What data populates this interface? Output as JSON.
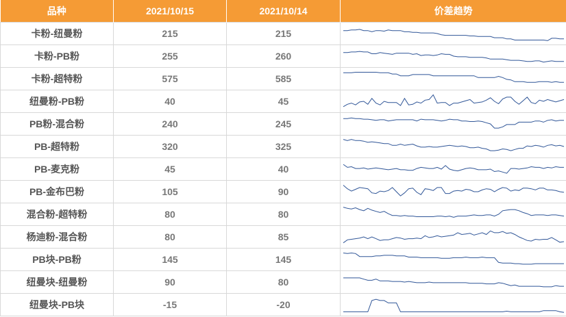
{
  "header": {
    "col_variety": "品种",
    "col_date1": "2021/10/15",
    "col_date2": "2021/10/14",
    "col_trend": "价差趋势"
  },
  "colors": {
    "header_bg": "#f59b35",
    "line": "#2f5597",
    "border": "#d8d8d8"
  },
  "chart_data": {
    "type": "table",
    "columns": [
      "品种",
      "2021/10/15",
      "2021/10/14",
      "价差趋势"
    ],
    "rows": [
      {
        "name": "卡粉-纽曼粉",
        "v1": "215",
        "v2": "215",
        "trend": [
          20,
          20,
          21,
          21,
          22,
          20,
          20,
          18,
          20,
          20,
          19,
          21,
          20,
          20,
          20,
          18,
          18,
          17,
          17,
          16,
          16,
          16,
          16,
          15,
          13,
          12,
          12,
          12,
          12,
          12,
          12,
          11,
          11,
          10,
          10,
          10,
          10,
          8,
          8,
          8,
          6,
          6,
          4,
          4,
          4,
          4,
          4,
          4,
          4,
          4,
          3,
          7,
          7,
          6,
          6
        ]
      },
      {
        "name": "卡粉-PB粉",
        "v1": "255",
        "v2": "260",
        "trend": [
          21,
          21,
          22,
          22,
          23,
          22,
          22,
          19,
          19,
          21,
          20,
          19,
          18,
          20,
          20,
          20,
          20,
          18,
          19,
          16,
          17,
          17,
          16,
          17,
          19,
          18,
          18,
          15,
          14,
          14,
          14,
          13,
          13,
          13,
          13,
          12,
          10,
          10,
          10,
          10,
          9,
          8,
          8,
          8,
          7,
          6,
          6,
          7,
          7,
          5,
          6,
          7,
          6,
          6,
          6
        ]
      },
      {
        "name": "卡粉-超特粉",
        "v1": "575",
        "v2": "585",
        "trend": [
          25,
          25,
          25,
          26,
          26,
          26,
          26,
          26,
          26,
          25,
          25,
          25,
          23,
          23,
          20,
          20,
          20,
          22,
          22,
          22,
          22,
          22,
          20,
          20,
          20,
          20,
          20,
          20,
          20,
          20,
          20,
          20,
          20,
          17,
          17,
          17,
          17,
          17,
          19,
          17,
          14,
          13,
          10,
          10,
          10,
          9,
          9,
          9,
          10,
          10,
          10,
          9,
          10,
          9,
          9
        ]
      },
      {
        "name": "纽曼粉-PB粉",
        "v1": "40",
        "v2": "45",
        "trend": [
          6,
          10,
          12,
          9,
          14,
          15,
          10,
          20,
          12,
          9,
          15,
          13,
          13,
          13,
          8,
          20,
          9,
          10,
          14,
          12,
          17,
          18,
          26,
          12,
          13,
          13,
          8,
          12,
          12,
          14,
          16,
          18,
          12,
          13,
          14,
          17,
          21,
          15,
          11,
          19,
          22,
          22,
          15,
          10,
          16,
          22,
          13,
          11,
          17,
          15,
          18,
          16,
          14,
          16,
          18
        ]
      },
      {
        "name": "PB粉-混合粉",
        "v1": "240",
        "v2": "245",
        "trend": [
          24,
          24,
          25,
          24,
          24,
          23,
          23,
          22,
          21,
          22,
          22,
          20,
          21,
          22,
          22,
          22,
          22,
          22,
          20,
          23,
          22,
          22,
          22,
          21,
          20,
          21,
          23,
          22,
          22,
          20,
          20,
          19,
          19,
          20,
          19,
          17,
          15,
          8,
          8,
          10,
          14,
          14,
          14,
          18,
          18,
          18,
          18,
          20,
          20,
          18,
          21,
          22,
          20,
          21,
          21
        ]
      },
      {
        "name": "PB-超特粉",
        "v1": "320",
        "v2": "325",
        "trend": [
          27,
          25,
          27,
          25,
          25,
          24,
          22,
          23,
          22,
          21,
          20,
          20,
          17,
          17,
          19,
          17,
          18,
          19,
          16,
          14,
          14,
          15,
          14,
          14,
          15,
          16,
          17,
          16,
          15,
          16,
          15,
          13,
          13,
          14,
          12,
          11,
          8,
          8,
          9,
          11,
          10,
          8,
          10,
          12,
          12,
          16,
          15,
          17,
          16,
          14,
          17,
          18,
          16,
          17,
          15
        ]
      },
      {
        "name": "PB-麦克粉",
        "v1": "45",
        "v2": "40",
        "trend": [
          23,
          18,
          19,
          16,
          16,
          17,
          15,
          16,
          17,
          16,
          15,
          14,
          15,
          16,
          14,
          14,
          13,
          13,
          16,
          18,
          17,
          16,
          16,
          18,
          15,
          21,
          15,
          13,
          12,
          14,
          16,
          17,
          16,
          14,
          14,
          14,
          15,
          11,
          12,
          10,
          8,
          16,
          16,
          15,
          16,
          17,
          19,
          18,
          18,
          16,
          18,
          17,
          19,
          18,
          18
        ]
      },
      {
        "name": "PB-金布巴粉",
        "v1": "105",
        "v2": "90",
        "trend": [
          26,
          20,
          16,
          19,
          22,
          21,
          20,
          13,
          12,
          16,
          15,
          17,
          22,
          15,
          8,
          13,
          20,
          21,
          14,
          10,
          20,
          19,
          17,
          22,
          22,
          12,
          12,
          16,
          17,
          16,
          19,
          18,
          15,
          15,
          18,
          20,
          19,
          15,
          19,
          22,
          21,
          16,
          18,
          17,
          21,
          21,
          20,
          18,
          21,
          21,
          18,
          18,
          17,
          15,
          14
        ]
      },
      {
        "name": "混合粉-超特粉",
        "v1": "80",
        "v2": "80",
        "trend": [
          27,
          25,
          24,
          26,
          23,
          21,
          25,
          22,
          20,
          18,
          20,
          16,
          13,
          13,
          12,
          13,
          12,
          12,
          11,
          11,
          11,
          11,
          11,
          12,
          12,
          11,
          12,
          10,
          12,
          12,
          12,
          13,
          14,
          13,
          13,
          14,
          14,
          12,
          15,
          21,
          22,
          23,
          23,
          21,
          18,
          16,
          13,
          14,
          14,
          14,
          13,
          14,
          14,
          13,
          12
        ]
      },
      {
        "name": "杨迪粉-混合粉",
        "v1": "80",
        "v2": "85",
        "trend": [
          5,
          10,
          11,
          12,
          13,
          15,
          12,
          15,
          12,
          9,
          10,
          10,
          12,
          14,
          13,
          11,
          12,
          12,
          13,
          12,
          17,
          14,
          15,
          17,
          15,
          16,
          17,
          18,
          22,
          19,
          20,
          21,
          18,
          20,
          22,
          19,
          25,
          22,
          22,
          24,
          21,
          22,
          19,
          15,
          12,
          9,
          8,
          11,
          10,
          11,
          11,
          14,
          10,
          6,
          7
        ]
      },
      {
        "name": "PB块-PB粉",
        "v1": "145",
        "v2": "145",
        "trend": [
          26,
          25,
          26,
          25,
          20,
          20,
          20,
          20,
          21,
          21,
          22,
          22,
          22,
          21,
          21,
          21,
          19,
          19,
          19,
          18,
          18,
          18,
          18,
          18,
          17,
          17,
          17,
          18,
          18,
          18,
          19,
          18,
          18,
          18,
          19,
          18,
          18,
          18,
          10,
          9,
          9,
          9,
          8,
          8,
          7,
          7,
          7,
          8,
          8,
          8,
          8,
          8,
          8,
          8,
          8
        ]
      },
      {
        "name": "纽曼块-纽曼粉",
        "v1": "90",
        "v2": "80",
        "trend": [
          22,
          22,
          22,
          22,
          22,
          20,
          18,
          18,
          20,
          17,
          17,
          17,
          16,
          16,
          16,
          15,
          16,
          15,
          14,
          14,
          14,
          15,
          14,
          14,
          14,
          14,
          14,
          14,
          14,
          14,
          14,
          13,
          13,
          13,
          13,
          12,
          12,
          12,
          14,
          13,
          11,
          9,
          10,
          8,
          8,
          8,
          8,
          8,
          8,
          7,
          7,
          7,
          9,
          8,
          8
        ]
      },
      {
        "name": "纽曼块-PB块",
        "v1": "-15",
        "v2": "-20",
        "trend": [
          3,
          3,
          3,
          3,
          3,
          3,
          3,
          22,
          24,
          22,
          22,
          18,
          18,
          18,
          3,
          3,
          3,
          3,
          3,
          3,
          3,
          3,
          3,
          3,
          3,
          3,
          3,
          3,
          3,
          3,
          3,
          3,
          3,
          3,
          3,
          3,
          3,
          3,
          3,
          3,
          4,
          3,
          3,
          3,
          3,
          3,
          3,
          3,
          3,
          5,
          5,
          5,
          5,
          3,
          2
        ]
      }
    ]
  }
}
